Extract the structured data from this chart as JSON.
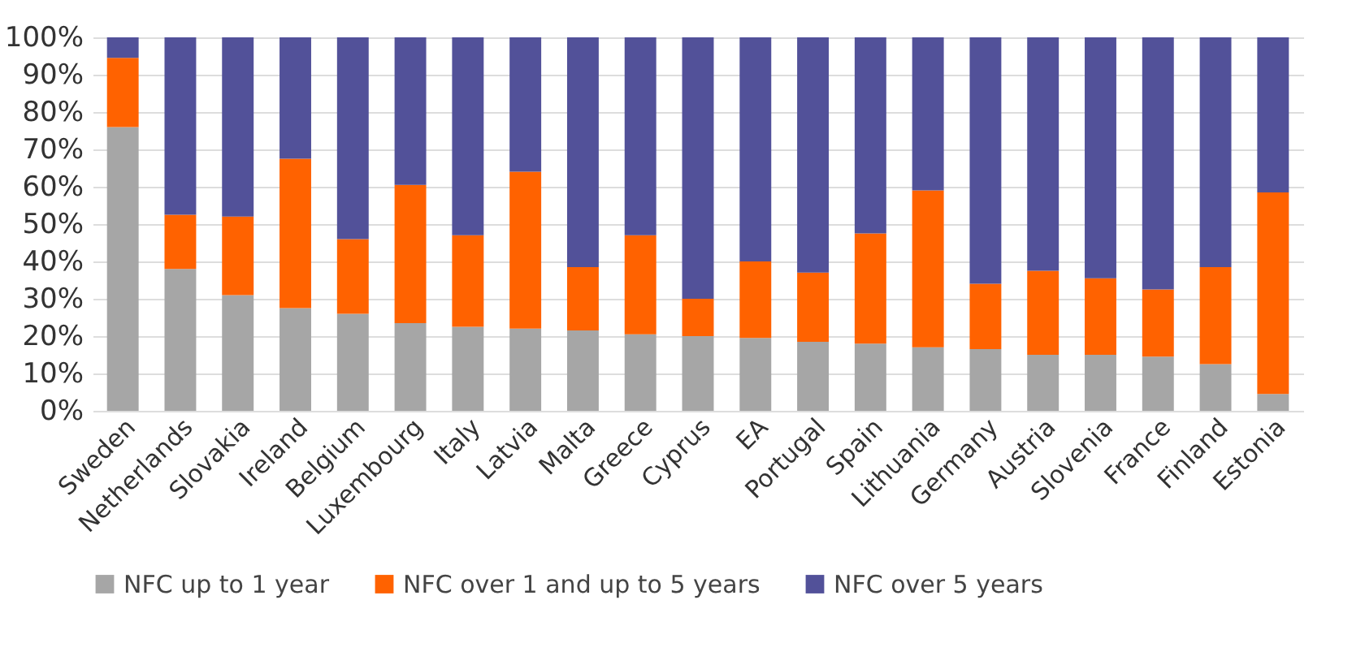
{
  "chart_data": {
    "type": "bar",
    "stacked": true,
    "legend": "bottom",
    "grid": "y",
    "categories": [
      "Sweden",
      "Netherlands",
      "Slovakia",
      "Ireland",
      "Belgium",
      "Luxembourg",
      "Italy",
      "Latvia",
      "Malta",
      "Greece",
      "Cyprus",
      "EA",
      "Portugal",
      "Spain",
      "Lithuania",
      "Germany",
      "Austria",
      "Slovenia",
      "France",
      "Finland",
      "Estonia"
    ],
    "ylim": [
      0,
      100
    ],
    "yticks": [
      {
        "value": 0,
        "label": "0%"
      },
      {
        "value": 10,
        "label": "10%"
      },
      {
        "value": 20,
        "label": "20%"
      },
      {
        "value": 30,
        "label": "30%"
      },
      {
        "value": 40,
        "label": "40%"
      },
      {
        "value": 50,
        "label": "50%"
      },
      {
        "value": 60,
        "label": "60%"
      },
      {
        "value": 70,
        "label": "70%"
      },
      {
        "value": 80,
        "label": "80%"
      },
      {
        "value": 90,
        "label": "90%"
      },
      {
        "value": 100,
        "label": "100%"
      }
    ],
    "series": [
      {
        "name": "NFC up to 1 year",
        "color": "#a6a6a6",
        "values": [
          76,
          38,
          31,
          27.5,
          26,
          23.5,
          22.5,
          22,
          21.5,
          20.5,
          20,
          19.5,
          18.5,
          18,
          17,
          16.5,
          15,
          15,
          14.5,
          12.5,
          4.5
        ]
      },
      {
        "name": "NFC over 1 and up to 5 years",
        "color": "#ff6200",
        "values": [
          18.5,
          14.5,
          21,
          40,
          20,
          37,
          24.5,
          42,
          17,
          26.5,
          10,
          20.5,
          18.5,
          29.5,
          42,
          17.5,
          22.5,
          20.5,
          18,
          26,
          54
        ]
      },
      {
        "name": "NFC over 5 years",
        "color": "#525199",
        "values": [
          5.5,
          47.5,
          48,
          32.5,
          54,
          39.5,
          53,
          36,
          61.5,
          53,
          70,
          60,
          63,
          52.5,
          41,
          66,
          62.5,
          64.5,
          67.5,
          61.5,
          41.5
        ]
      }
    ]
  }
}
